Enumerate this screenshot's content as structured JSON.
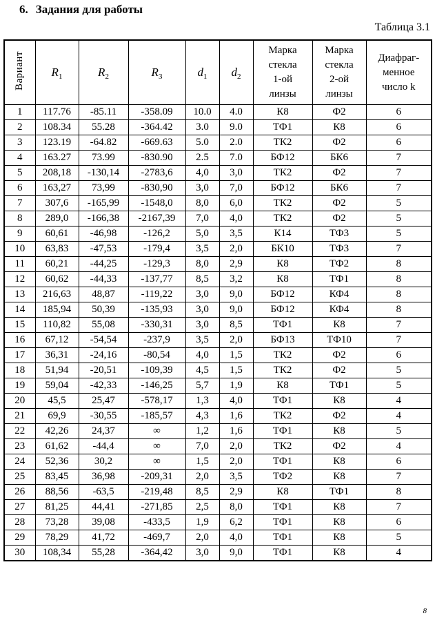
{
  "page": {
    "section_number": "6.",
    "section_title": "Задания для работы",
    "table_caption": "Таблица 3.1",
    "page_number": "8"
  },
  "table": {
    "headers": {
      "variant": "Вариант",
      "r1": {
        "base": "R",
        "sub": "1"
      },
      "r2": {
        "base": "R",
        "sub": "2"
      },
      "r3": {
        "base": "R",
        "sub": "3"
      },
      "d1": {
        "base": "d",
        "sub": "1"
      },
      "d2": {
        "base": "d",
        "sub": "2"
      },
      "glass1": "Марка\nстекла\n1-ой\nлинзы",
      "glass2": "Марка\nстекла\n2-ой\nлинзы",
      "k": "Диафраг-\nменное\nчисло k"
    },
    "rows": [
      [
        "1",
        "117.76",
        "-85.11",
        "-358.09",
        "10.0",
        "4.0",
        "К8",
        "Ф2",
        "6"
      ],
      [
        "2",
        "108.34",
        "55.28",
        "-364.42",
        "3.0",
        "9.0",
        "ТФ1",
        "К8",
        "6"
      ],
      [
        "3",
        "123.19",
        "-64.82",
        "-669.63",
        "5.0",
        "2.0",
        "ТК2",
        "Ф2",
        "6"
      ],
      [
        "4",
        "163.27",
        "73.99",
        "-830.90",
        "2.5",
        "7.0",
        "БФ12",
        "БК6",
        "7"
      ],
      [
        "5",
        "208,18",
        "-130,14",
        "-2783,6",
        "4,0",
        "3,0",
        "ТК2",
        "Ф2",
        "7"
      ],
      [
        "6",
        "163,27",
        "73,99",
        "-830,90",
        "3,0",
        "7,0",
        "БФ12",
        "БК6",
        "7"
      ],
      [
        "7",
        "307,6",
        "-165,99",
        "-1548,0",
        "8,0",
        "6,0",
        "ТК2",
        "Ф2",
        "5"
      ],
      [
        "8",
        "289,0",
        "-166,38",
        "-2167,39",
        "7,0",
        "4,0",
        "ТК2",
        "Ф2",
        "5"
      ],
      [
        "9",
        "60,61",
        "-46,98",
        "-126,2",
        "5,0",
        "3,5",
        "К14",
        "ТФ3",
        "5"
      ],
      [
        "10",
        "63,83",
        "-47,53",
        "-179,4",
        "3,5",
        "2,0",
        "БК10",
        "ТФ3",
        "7"
      ],
      [
        "11",
        "60,21",
        "-44,25",
        "-129,3",
        "8,0",
        "2,9",
        "К8",
        "ТФ2",
        "8"
      ],
      [
        "12",
        "60,62",
        "-44,33",
        "-137,77",
        "8,5",
        "3,2",
        "К8",
        "ТФ1",
        "8"
      ],
      [
        "13",
        "216,63",
        "48,87",
        "-119,22",
        "3,0",
        "9,0",
        "БФ12",
        "КФ4",
        "8"
      ],
      [
        "14",
        "185,94",
        "50,39",
        "-135,93",
        "3,0",
        "9,0",
        "БФ12",
        "КФ4",
        "8"
      ],
      [
        "15",
        "110,82",
        "55,08",
        "-330,31",
        "3,0",
        "8,5",
        "ТФ1",
        "К8",
        "7"
      ],
      [
        "16",
        "67,12",
        "-54,54",
        "-237,9",
        "3,5",
        "2,0",
        "БФ13",
        "ТФ10",
        "7"
      ],
      [
        "17",
        "36,31",
        "-24,16",
        "-80,54",
        "4,0",
        "1,5",
        "ТК2",
        "Ф2",
        "6"
      ],
      [
        "18",
        "51,94",
        "-20,51",
        "-109,39",
        "4,5",
        "1,5",
        "ТК2",
        "Ф2",
        "5"
      ],
      [
        "19",
        "59,04",
        "-42,33",
        "-146,25",
        "5,7",
        "1,9",
        "К8",
        "ТФ1",
        "5"
      ],
      [
        "20",
        "45,5",
        "25,47",
        "-578,17",
        "1,3",
        "4,0",
        "ТФ1",
        "К8",
        "4"
      ],
      [
        "21",
        "69,9",
        "-30,55",
        "-185,57",
        "4,3",
        "1,6",
        "ТК2",
        "Ф2",
        "4"
      ],
      [
        "22",
        "42,26",
        "24,37",
        "∞",
        "1,2",
        "1,6",
        "ТФ1",
        "К8",
        "5"
      ],
      [
        "23",
        "61,62",
        "-44,4",
        "∞",
        "7,0",
        "2,0",
        "ТК2",
        "Ф2",
        "4"
      ],
      [
        "24",
        "52,36",
        "30,2",
        "∞",
        "1,5",
        "2,0",
        "ТФ1",
        "К8",
        "6"
      ],
      [
        "25",
        "83,45",
        "36,98",
        "-209,31",
        "2,0",
        "3,5",
        "ТФ2",
        "К8",
        "7"
      ],
      [
        "26",
        "88,56",
        "-63,5",
        "-219,48",
        "8,5",
        "2,9",
        "К8",
        "ТФ1",
        "8"
      ],
      [
        "27",
        "81,25",
        "44,41",
        "-271,85",
        "2,5",
        "8,0",
        "ТФ1",
        "К8",
        "7"
      ],
      [
        "28",
        "73,28",
        "39,08",
        "-433,5",
        "1,9",
        "6,2",
        "ТФ1",
        "К8",
        "6"
      ],
      [
        "29",
        "78,29",
        "41,72",
        "-469,7",
        "2,0",
        "4,0",
        "ТФ1",
        "К8",
        "5"
      ],
      [
        "30",
        "108,34",
        "55,28",
        "-364,42",
        "3,0",
        "9,0",
        "ТФ1",
        "К8",
        "4"
      ]
    ]
  }
}
